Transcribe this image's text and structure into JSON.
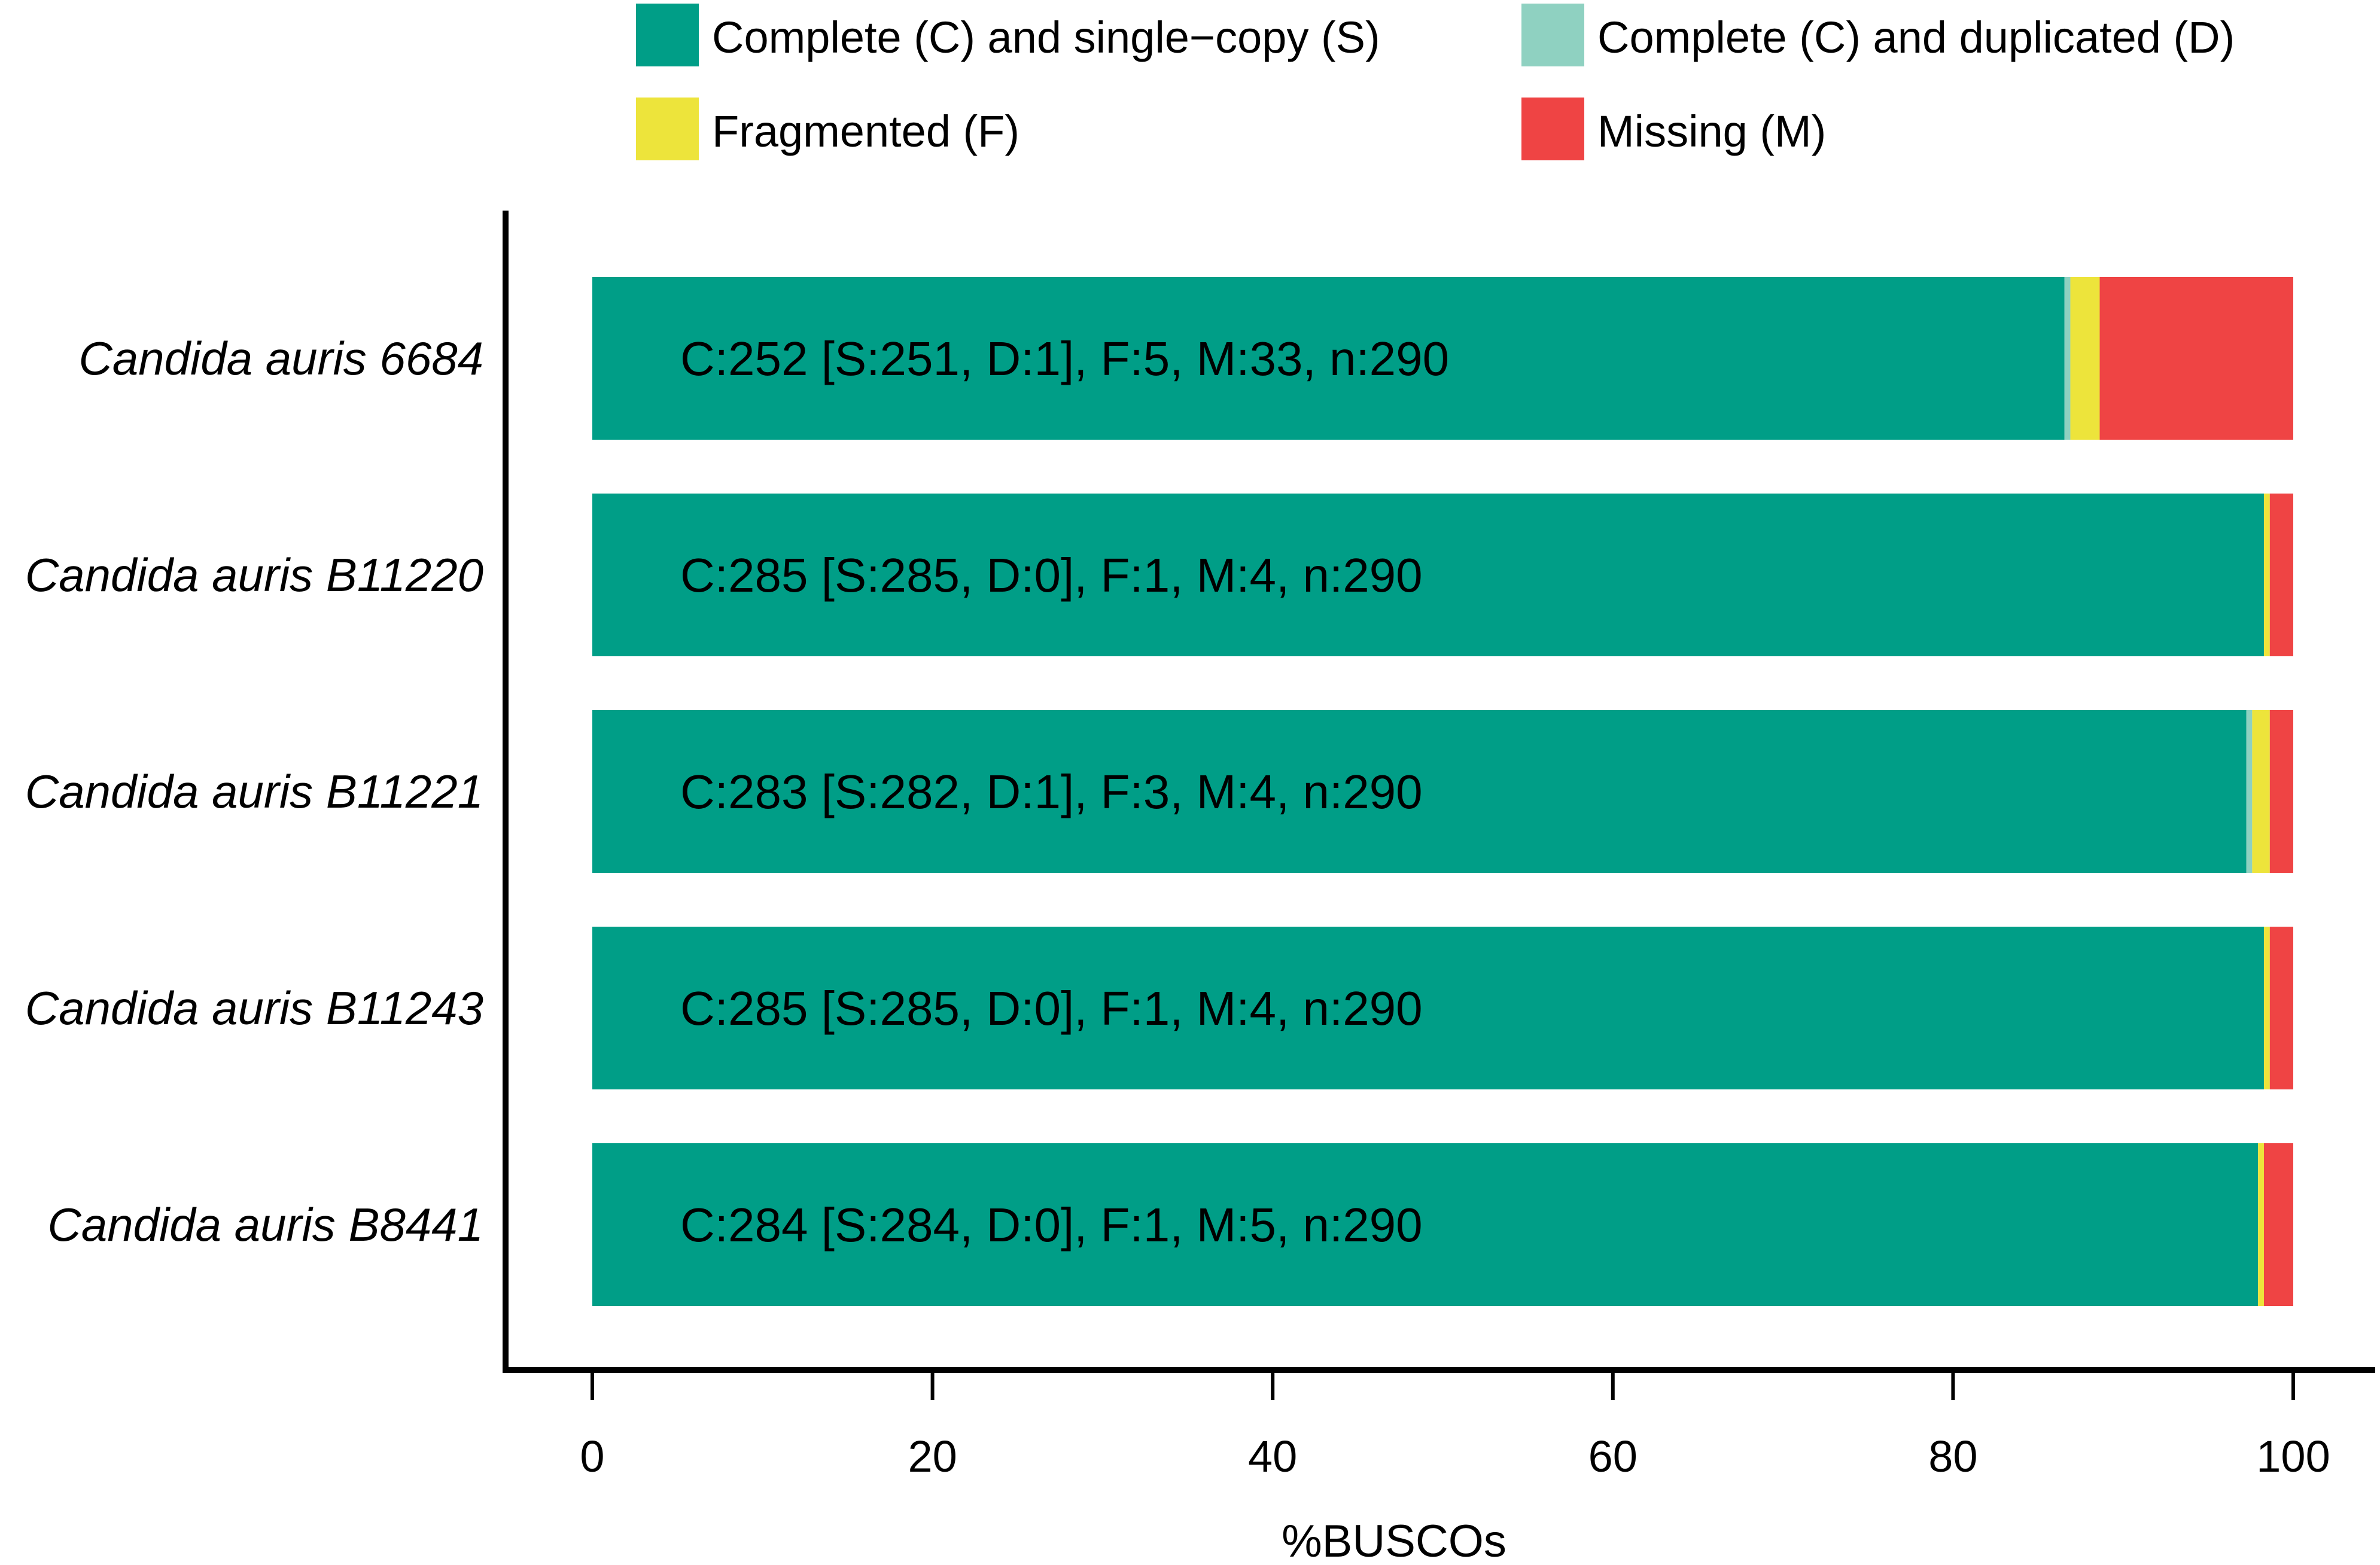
{
  "chart_data": {
    "type": "bar",
    "orientation": "horizontal",
    "stacked": true,
    "xlabel": "%BUSCOs",
    "ylabel": "",
    "xlim": [
      0,
      100
    ],
    "xticks": [
      0,
      20,
      40,
      60,
      80,
      100
    ],
    "grid": false,
    "legend_position": "top",
    "categories": [
      "Candida auris 6684",
      "Candida auris B11220",
      "Candida auris B11221",
      "Candida auris B11243",
      "Candida auris B8441"
    ],
    "total_buscos": 290,
    "series": [
      {
        "name": "Complete (C) and single−copy (S)",
        "key": "S",
        "color": "#009E87",
        "counts": [
          251,
          285,
          282,
          285,
          284
        ]
      },
      {
        "name": "Complete (C) and duplicated (D)",
        "key": "D",
        "color": "#8FD1C1",
        "counts": [
          1,
          0,
          1,
          0,
          0
        ]
      },
      {
        "name": "Fragmented (F)",
        "key": "F",
        "color": "#EDE43B",
        "counts": [
          5,
          1,
          3,
          1,
          1
        ]
      },
      {
        "name": "Missing (M)",
        "key": "M",
        "color": "#EF4444",
        "counts": [
          33,
          4,
          4,
          4,
          5
        ]
      }
    ],
    "bar_labels": [
      "C:252 [S:251, D:1], F:5, M:33, n:290",
      "C:285 [S:285, D:0], F:1, M:4, n:290",
      "C:283 [S:282, D:1], F:3, M:4, n:290",
      "C:285 [S:285, D:0], F:1, M:4, n:290",
      "C:284 [S:284, D:0], F:1, M:5, n:290"
    ]
  }
}
